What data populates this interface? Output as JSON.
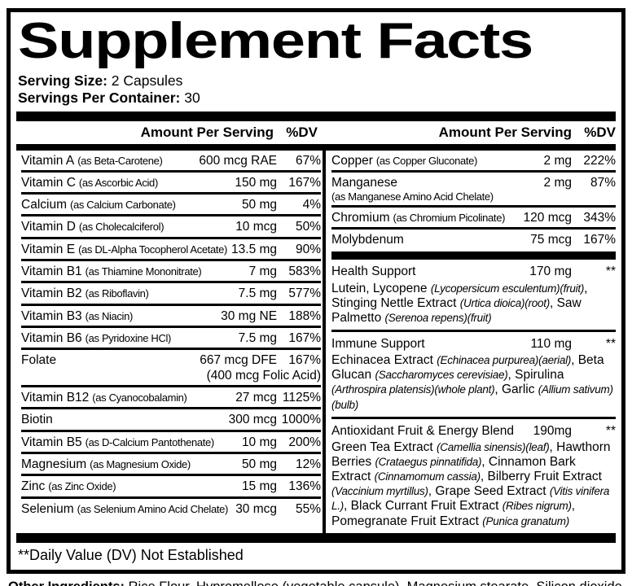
{
  "colors": {
    "ink": "#000000",
    "background": "#ffffff"
  },
  "title": "Supplement Facts",
  "serving": {
    "size_label": "Serving Size:",
    "size_value": "2 Capsules",
    "per_container_label": "Servings Per Container:",
    "per_container_value": "30"
  },
  "columns": {
    "header_amount": "Amount Per Serving",
    "header_dv": "%DV"
  },
  "left_rows": [
    {
      "name": "Vitamin A",
      "qualifier": "(as Beta-Carotene)",
      "amount": "600 mcg RAE",
      "dv": "67%"
    },
    {
      "name": "Vitamin C",
      "qualifier": "(as Ascorbic Acid)",
      "amount": "150 mg",
      "dv": "167%"
    },
    {
      "name": "Calcium",
      "qualifier": "(as Calcium Carbonate)",
      "amount": "50 mg",
      "dv": "4%"
    },
    {
      "name": "Vitamin D",
      "qualifier": "(as Cholecalciferol)",
      "amount": "10 mcg",
      "dv": "50%"
    },
    {
      "name": "Vitamin E",
      "qualifier": "(as DL-Alpha Tocopherol Acetate)",
      "amount": "13.5 mg",
      "dv": "90%"
    },
    {
      "name": "Vitamin B1",
      "qualifier": "(as Thiamine Mononitrate)",
      "amount": "7 mg",
      "dv": "583%"
    },
    {
      "name": "Vitamin B2",
      "qualifier": "(as Riboflavin)",
      "amount": "7.5 mg",
      "dv": "577%"
    },
    {
      "name": "Vitamin B3",
      "qualifier": "(as Niacin)",
      "amount": "30 mg NE",
      "dv": "188%"
    },
    {
      "name": "Vitamin B6",
      "qualifier": "(as Pyridoxine HCl)",
      "amount": "7.5 mg",
      "dv": "167%"
    },
    {
      "name": "Folate",
      "qualifier": "",
      "amount": "667 mcg DFE",
      "amount2": "(400 mcg Folic Acid)",
      "dv": "167%"
    },
    {
      "name": "Vitamin B12",
      "qualifier": "(as Cyanocobalamin)",
      "amount": "27 mcg",
      "dv": "1125%"
    },
    {
      "name": "Biotin",
      "qualifier": "",
      "amount": "300 mcg",
      "dv": "1000%"
    },
    {
      "name": "Vitamin B5",
      "qualifier": "(as D-Calcium Pantothenate)",
      "amount": "10 mg",
      "dv": "200%"
    },
    {
      "name": "Magnesium",
      "qualifier": "(as Magnesium Oxide)",
      "amount": "50 mg",
      "dv": "12%"
    },
    {
      "name": "Zinc",
      "qualifier": "(as Zinc Oxide)",
      "amount": "15 mg",
      "dv": "136%"
    },
    {
      "name": "Selenium",
      "qualifier": "(as Selenium Amino Acid Chelate)",
      "amount": "30 mcg",
      "dv": "55%"
    }
  ],
  "right_rows": [
    {
      "name": "Copper",
      "qualifier": "(as Copper Gluconate)",
      "amount": "2 mg",
      "dv": "222%"
    },
    {
      "name": "Manganese",
      "qualifier": "(as Manganese Amino Acid Chelate)",
      "amount": "2 mg",
      "dv": "87%"
    },
    {
      "name": "Chromium",
      "qualifier": "(as Chromium Picolinate)",
      "amount": "120 mcg",
      "dv": "343%"
    },
    {
      "name": "Molybdenum",
      "qualifier": "",
      "amount": "75 mcg",
      "dv": "167%"
    }
  ],
  "blends": [
    {
      "name": "Health Support",
      "amount": "170 mg",
      "dv": "**",
      "desc": [
        {
          "t": "Lutein, Lycopene ",
          "i": false
        },
        {
          "t": "(Lycopersicum esculentum)(fruit)",
          "i": true
        },
        {
          "t": ", Stinging Nettle Extract ",
          "i": false
        },
        {
          "t": "(Urtica dioica)(root)",
          "i": true
        },
        {
          "t": ", Saw Palmetto ",
          "i": false
        },
        {
          "t": "(Serenoa repens)(fruit)",
          "i": true
        }
      ]
    },
    {
      "name": "Immune Support",
      "amount": "110 mg",
      "dv": "**",
      "desc": [
        {
          "t": "Echinacea Extract ",
          "i": false
        },
        {
          "t": "(Echinacea purpurea)(aerial)",
          "i": true
        },
        {
          "t": ", Beta Glucan ",
          "i": false
        },
        {
          "t": "(Saccharomyces cerevisiae)",
          "i": true
        },
        {
          "t": ", Spirulina ",
          "i": false
        },
        {
          "t": "(Arthrospira platensis)(whole plant)",
          "i": true
        },
        {
          "t": ", Garlic ",
          "i": false
        },
        {
          "t": "(Allium sativum)(bulb)",
          "i": true
        }
      ]
    },
    {
      "name": "Antioxidant Fruit & Energy Blend",
      "amount": "190mg",
      "dv": "**",
      "desc": [
        {
          "t": "Green Tea Extract ",
          "i": false
        },
        {
          "t": "(Camellia sinensis)(leaf)",
          "i": true
        },
        {
          "t": ", Hawthorn Berries ",
          "i": false
        },
        {
          "t": "(Crataegus pinnatifida)",
          "i": true
        },
        {
          "t": ", Cinnamon Bark Extract ",
          "i": false
        },
        {
          "t": "(Cinnamomum cassia)",
          "i": true
        },
        {
          "t": ", Bilberry Fruit Extract ",
          "i": false
        },
        {
          "t": "(Vaccinium myrtillus)",
          "i": true
        },
        {
          "t": ", Grape Seed Extract ",
          "i": false
        },
        {
          "t": "(Vitis vinifera L.)",
          "i": true
        },
        {
          "t": ", Black Currant Fruit Extract ",
          "i": false
        },
        {
          "t": "(Ribes nigrum)",
          "i": true
        },
        {
          "t": ", Pomegranate Fruit Extract ",
          "i": false
        },
        {
          "t": "(Punica granatum)",
          "i": true
        }
      ]
    }
  ],
  "footnote": "**Daily Value (DV) Not Established",
  "other_ingredients": {
    "label": "Other Ingredients:",
    "text": "Rice Flour, Hypromellose (vegetable capsule), Magnesium stearate, Silicon dioxide."
  }
}
